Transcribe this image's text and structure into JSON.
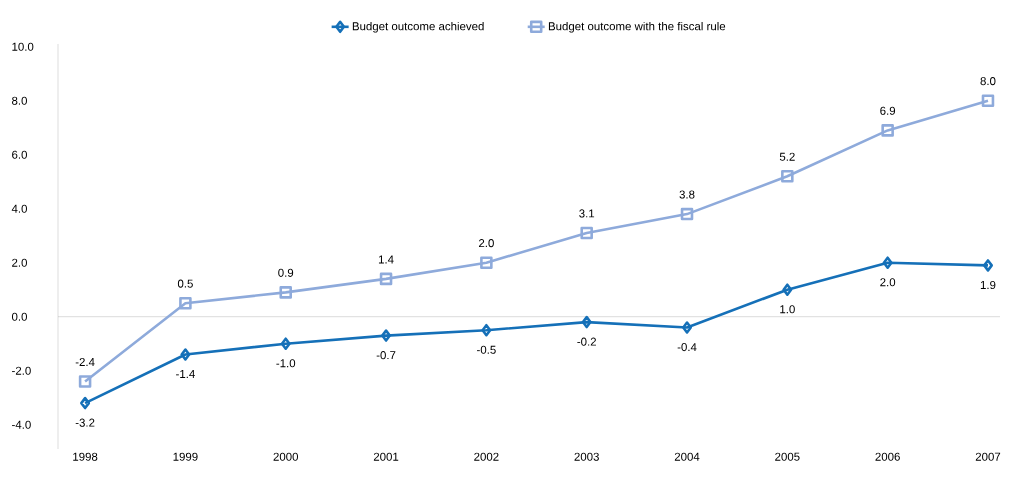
{
  "chart_data": {
    "type": "line",
    "categories": [
      "1998",
      "1999",
      "2000",
      "2001",
      "2002",
      "2003",
      "2004",
      "2005",
      "2006",
      "2007"
    ],
    "series": [
      {
        "name": "Budget outcome achieved",
        "color": "#1570b8",
        "marker": "diamond",
        "values": [
          -3.2,
          -1.4,
          -1.0,
          -0.7,
          -0.5,
          -0.2,
          -0.4,
          1.0,
          2.0,
          1.9
        ],
        "value_labels": [
          "-3.2",
          "-1.4",
          "-1.0",
          "-0.7",
          "-0.5",
          "-0.2",
          "-0.4",
          "1.0",
          "2.0",
          "1.9"
        ]
      },
      {
        "name": "Budget outcome with the fiscal rule",
        "color": "#8eaadb",
        "marker": "square",
        "values": [
          -2.4,
          0.5,
          0.9,
          1.4,
          2.0,
          3.1,
          3.8,
          5.2,
          6.9,
          8.0
        ],
        "value_labels": [
          "-2.4",
          "0.5",
          "0.9",
          "1.4",
          "2.0",
          "3.1",
          "3.8",
          "5.2",
          "6.9",
          "8.0"
        ]
      }
    ],
    "ylim": [
      -4.9,
      10.1
    ],
    "yticks": [
      {
        "value": -4,
        "label": "-4.0"
      },
      {
        "value": -2,
        "label": "-2.0"
      },
      {
        "value": 0,
        "label": "0.0"
      },
      {
        "value": 2,
        "label": "2.0"
      },
      {
        "value": 4,
        "label": "4.0"
      },
      {
        "value": 6,
        "label": "6.0"
      },
      {
        "value": 8,
        "label": "8.0"
      },
      {
        "value": 10,
        "label": "10.0"
      }
    ],
    "legend": "top",
    "line_style": "solid"
  }
}
